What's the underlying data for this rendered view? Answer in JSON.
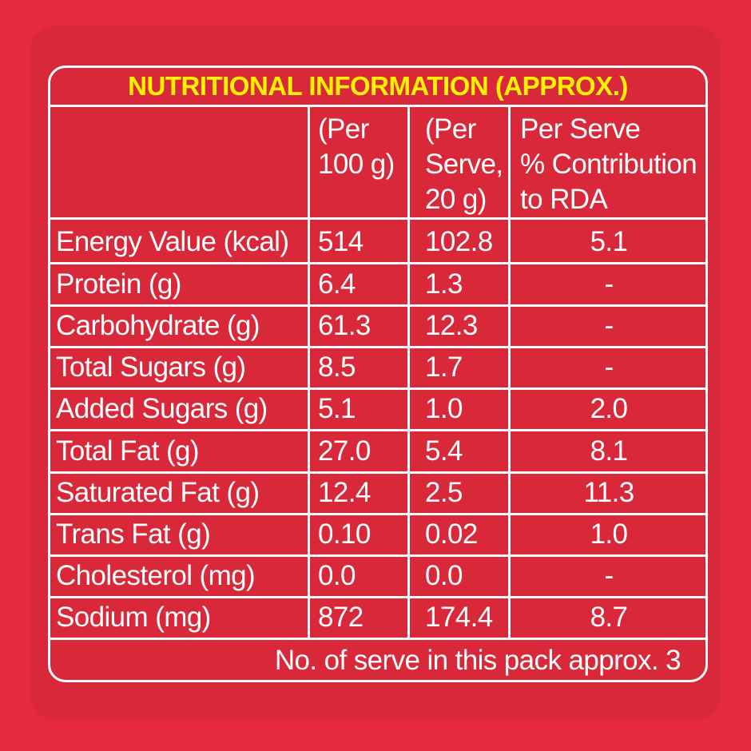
{
  "title": "NUTRITIONAL INFORMATION (APPROX.)",
  "columns": [
    {
      "line1": "(Per",
      "line2": "100 g)",
      "line3": ""
    },
    {
      "line1": "(Per",
      "line2": "Serve,",
      "line3": "20 g)"
    },
    {
      "line1": "Per Serve",
      "line2": "% Contribution",
      "line3": "to RDA"
    }
  ],
  "rows": [
    {
      "label": "Energy Value (kcal)",
      "per100": "514",
      "perServe": "102.8",
      "rda": "5.1"
    },
    {
      "label": "Protein (g)",
      "per100": "6.4",
      "perServe": "1.3",
      "rda": "-"
    },
    {
      "label": "Carbohydrate (g)",
      "per100": "61.3",
      "perServe": "12.3",
      "rda": "-"
    },
    {
      "label": "Total Sugars (g)",
      "per100": "8.5",
      "perServe": "1.7",
      "rda": "-"
    },
    {
      "label": "Added Sugars (g)",
      "per100": "5.1",
      "perServe": "1.0",
      "rda": "2.0"
    },
    {
      "label": "Total Fat (g)",
      "per100": "27.0",
      "perServe": "5.4",
      "rda": "8.1"
    },
    {
      "label": "Saturated Fat (g)",
      "per100": "12.4",
      "perServe": "2.5",
      "rda": "11.3"
    },
    {
      "label": "Trans Fat (g)",
      "per100": "0.10",
      "perServe": "0.02",
      "rda": "1.0"
    },
    {
      "label": "Cholesterol (mg)",
      "per100": "0.0",
      "perServe": "0.0",
      "rda": "-"
    },
    {
      "label": "Sodium (mg)",
      "per100": "872",
      "perServe": "174.4",
      "rda": "8.7"
    }
  ],
  "footer": "No. of serve in this pack approx. 3",
  "colors": {
    "background": "#e42a3c",
    "text": "#ffffff",
    "title": "#fff200"
  }
}
